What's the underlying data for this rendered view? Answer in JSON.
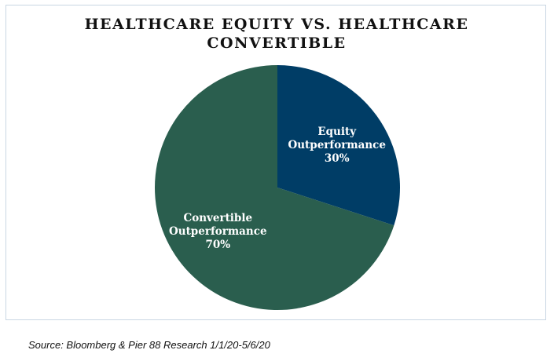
{
  "chart_data": {
    "type": "pie",
    "title_lines": [
      "HEALTHCARE EQUITY VS. HEALTHCARE",
      "CONVERTIBLE"
    ],
    "slices": [
      {
        "label_lines": [
          "Equity",
          "Outperformance"
        ],
        "value": 30,
        "value_label": "30%",
        "color": "#003d66"
      },
      {
        "label_lines": [
          "Convertible",
          "Outperformance"
        ],
        "value": 70,
        "value_label": "70%",
        "color": "#2a5e4e"
      }
    ],
    "start": "12 o'clock",
    "direction": "clockwise",
    "legend": "none"
  },
  "source": "Source: Bloomberg & Pier 88 Research 1/1/20-5/6/20"
}
